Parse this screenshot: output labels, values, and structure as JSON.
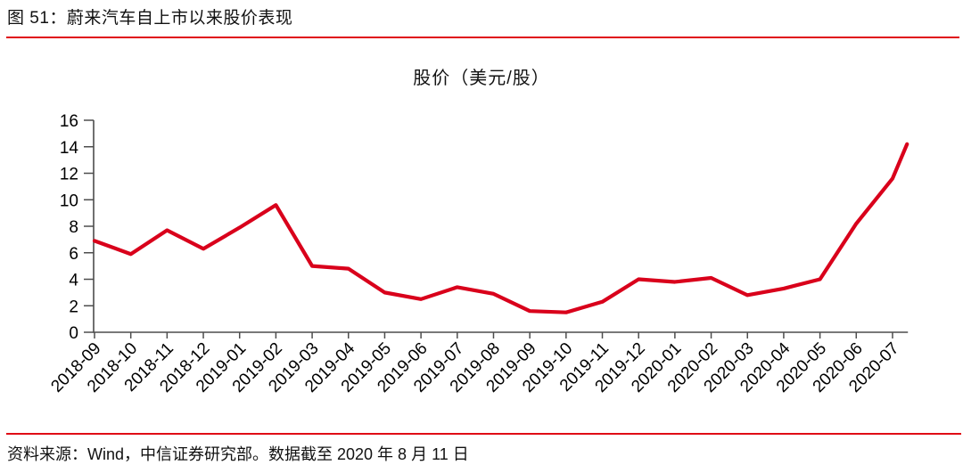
{
  "page": {
    "figure_title": "图 51：蔚来汽车自上市以来股价表现",
    "source_note": "资料来源：Wind，中信证券研究部。数据截至 2020 年 8 月 11 日",
    "accent_color": "#e00b15"
  },
  "chart_data": {
    "type": "line",
    "title": "股价（美元/股）",
    "xlabel": "",
    "ylabel": "",
    "categories": [
      "2018-09",
      "2018-10",
      "2018-11",
      "2018-12",
      "2019-01",
      "2019-02",
      "2019-03",
      "2019-04",
      "2019-05",
      "2019-06",
      "2019-07",
      "2019-08",
      "2019-09",
      "2019-10",
      "2019-11",
      "2019-12",
      "2020-01",
      "2020-02",
      "2020-03",
      "2020-04",
      "2020-05",
      "2020-06",
      "2020-07"
    ],
    "series": [
      {
        "name": "股价（美元/股）",
        "color": "#d9001b",
        "values": [
          6.9,
          5.9,
          7.7,
          6.3,
          7.9,
          9.6,
          5.0,
          4.8,
          3.0,
          2.5,
          3.4,
          2.9,
          1.6,
          1.5,
          2.3,
          4.0,
          3.8,
          4.1,
          2.8,
          3.3,
          4.0,
          8.2,
          11.6
        ],
        "final_partial_point": {
          "date": "2020-08-11",
          "value": 14.2,
          "x_offset_months": 0.4
        }
      }
    ],
    "ylim": [
      0,
      16
    ],
    "y_tick_step": 2,
    "x_tick_rotation_deg": 45,
    "grid": false,
    "legend": "none",
    "axis_color": "#4d4d4d"
  }
}
